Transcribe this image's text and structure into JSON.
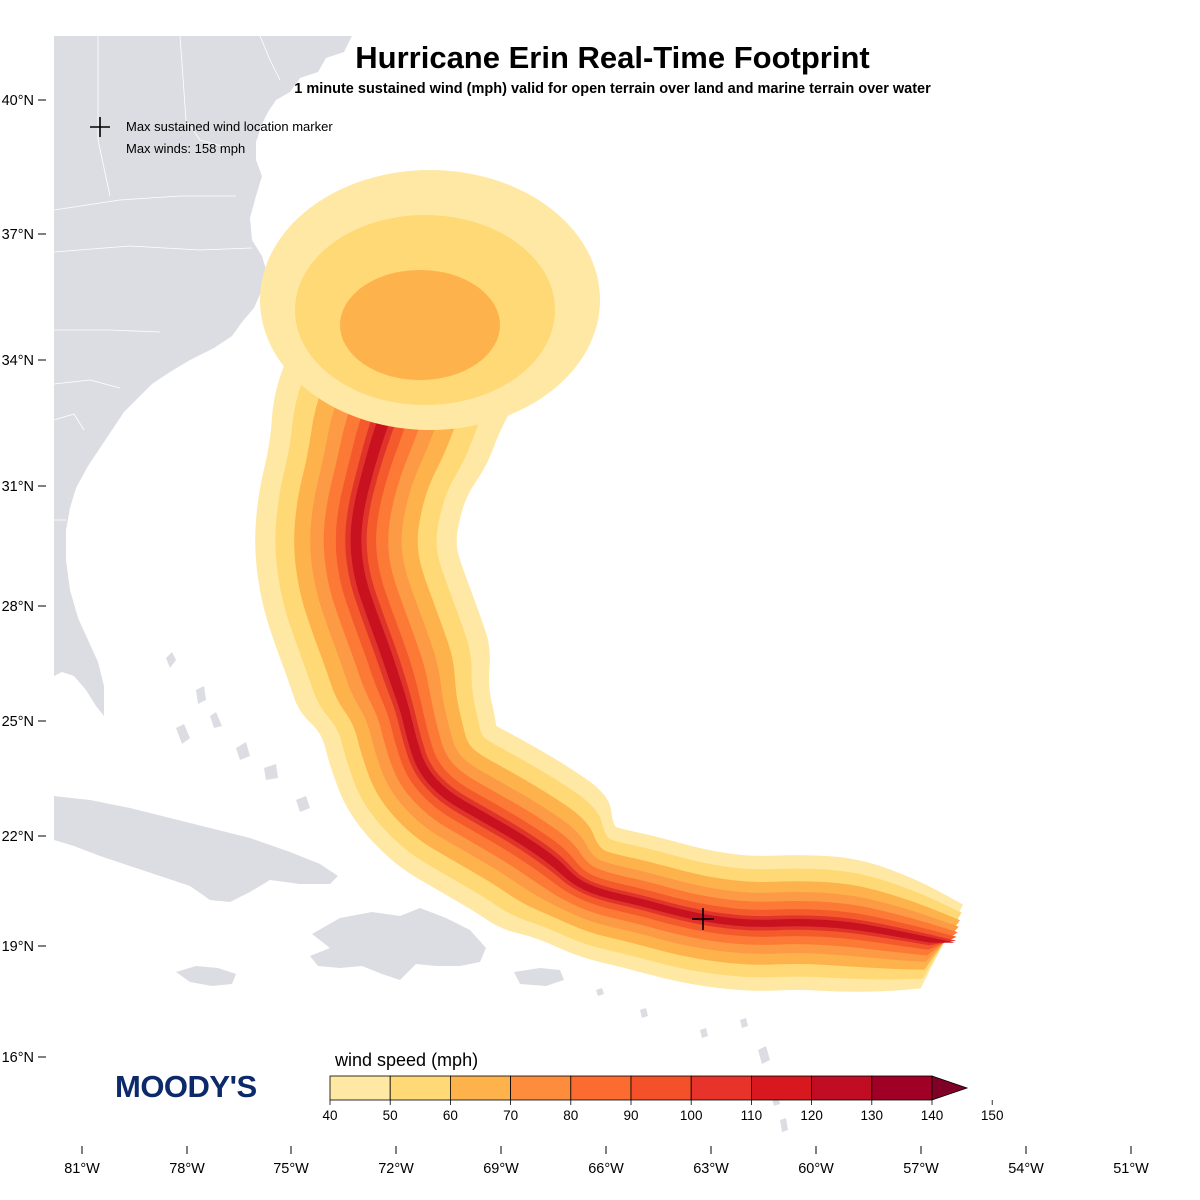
{
  "title": "Hurricane Erin Real-Time Footprint",
  "subtitle": "1 minute sustained wind (mph) valid for open terrain over land and marine terrain over water",
  "legend": {
    "marker_label": "Max sustained wind location marker",
    "max_winds_label": "Max winds: 158 mph"
  },
  "brand": {
    "logo_text": "MOODY'S"
  },
  "map": {
    "lat_ticks": [
      "40°N",
      "37°N",
      "34°N",
      "31°N",
      "28°N",
      "25°N",
      "22°N",
      "19°N",
      "16°N"
    ],
    "lon_ticks": [
      "81°W",
      "78°W",
      "75°W",
      "72°W",
      "69°W",
      "66°W",
      "63°W",
      "60°W",
      "57°W",
      "54°W",
      "51°W"
    ],
    "land_color": "#dcdde2",
    "max_wind_marker": {
      "lon": -63.2,
      "lat": 19.8,
      "value_mph": 158
    }
  },
  "colorbar": {
    "title": "wind speed (mph)",
    "ticks": [
      "40",
      "50",
      "60",
      "70",
      "80",
      "90",
      "100",
      "110",
      "120",
      "130",
      "140",
      "150"
    ],
    "levels": [
      40,
      50,
      60,
      70,
      80,
      90,
      100,
      110,
      120,
      130,
      140,
      150
    ],
    "colors": [
      "#ffe8a3",
      "#fed976",
      "#feb24c",
      "#fd8d3c",
      "#fc6c30",
      "#f4512b",
      "#e8332a",
      "#d7191f",
      "#c00d23",
      "#a10026",
      "#800026"
    ]
  },
  "footprint_colors": [
    "#ffe8a3",
    "#fed976",
    "#feb24c",
    "#fd9a45",
    "#fc7a35",
    "#f45a2c",
    "#e0342a",
    "#c8121f"
  ]
}
